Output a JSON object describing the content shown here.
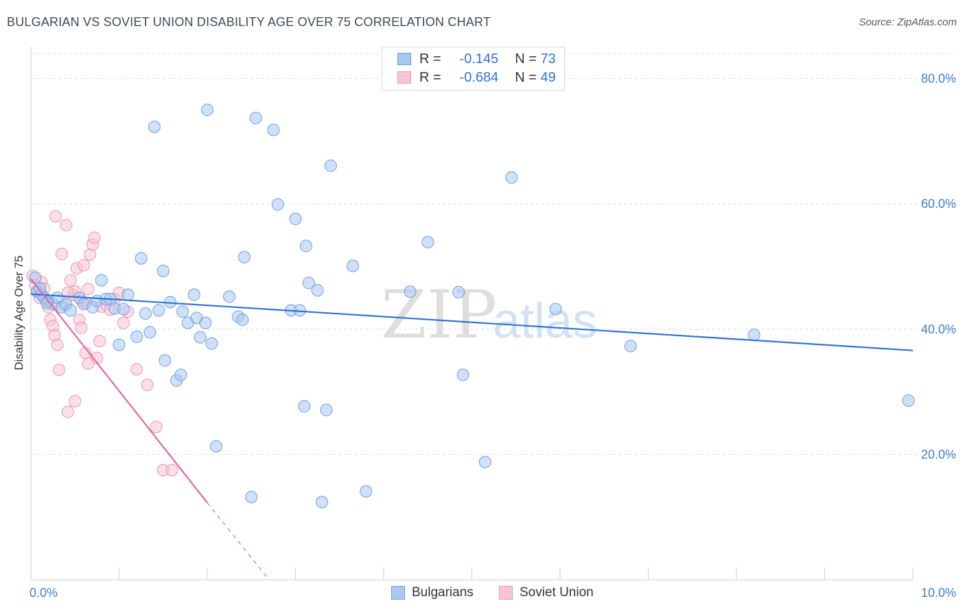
{
  "title": "BULGARIAN VS SOVIET UNION DISABILITY AGE OVER 75 CORRELATION CHART",
  "source": "Source: ZipAtlas.com",
  "watermark": {
    "zip": "ZIP",
    "atlas": "atlas"
  },
  "legend": {
    "rows": [
      {
        "r_label": "R =",
        "r_value": "-0.145",
        "n_label": "N =",
        "n_value": "73",
        "color": "#a9c8f0",
        "border": "#6a9fe0"
      },
      {
        "r_label": "R =",
        "r_value": "-0.684",
        "n_label": "N =",
        "n_value": "49",
        "color": "#f7c5d6",
        "border": "#ec93b2"
      }
    ]
  },
  "bottom_legend": [
    {
      "label": "Bulgarians",
      "color": "#a9c8f0",
      "border": "#6a9fe0"
    },
    {
      "label": "Soviet Union",
      "color": "#f7c5d6",
      "border": "#ec93b2"
    }
  ],
  "chart_data": {
    "type": "scatter",
    "title": "BULGARIAN VS SOVIET UNION DISABILITY AGE OVER 75 CORRELATION CHART",
    "xlabel": "",
    "ylabel": "Disability Age Over 75",
    "xlim": [
      0,
      10
    ],
    "ylim": [
      0,
      84
    ],
    "x_tick_labels": [
      {
        "value": 0,
        "label": "0.0%"
      },
      {
        "value": 10,
        "label": "10.0%"
      }
    ],
    "y_tick_labels": [
      {
        "value": 20,
        "label": "20.0%"
      },
      {
        "value": 40,
        "label": "40.0%"
      },
      {
        "value": 60,
        "label": "60.0%"
      },
      {
        "value": 80,
        "label": "80.0%"
      }
    ],
    "grid": "horizontal dashed",
    "series": [
      {
        "name": "Bulgarians",
        "color": "#a9c8f0",
        "edge": "#6a9fe0",
        "line_color": "#2f72d6",
        "trend": {
          "x": [
            0.0,
            10.0
          ],
          "y": [
            45.6,
            36.6
          ]
        },
        "points": [
          [
            0.05,
            48.2
          ],
          [
            0.07,
            46.0
          ],
          [
            0.12,
            45.5
          ],
          [
            0.15,
            45.0
          ],
          [
            0.2,
            44.5
          ],
          [
            0.25,
            44.0
          ],
          [
            0.3,
            45.0
          ],
          [
            0.35,
            43.5
          ],
          [
            0.4,
            44.0
          ],
          [
            0.45,
            43.0
          ],
          [
            0.55,
            45.0
          ],
          [
            0.6,
            44.0
          ],
          [
            0.7,
            43.5
          ],
          [
            0.75,
            44.5
          ],
          [
            0.8,
            47.8
          ],
          [
            0.85,
            44.8
          ],
          [
            0.9,
            44.8
          ],
          [
            0.95,
            43.3
          ],
          [
            1.0,
            37.5
          ],
          [
            1.05,
            43.2
          ],
          [
            1.1,
            45.5
          ],
          [
            1.2,
            38.8
          ],
          [
            1.25,
            51.3
          ],
          [
            1.3,
            42.5
          ],
          [
            1.35,
            39.5
          ],
          [
            1.4,
            72.3
          ],
          [
            1.45,
            43.0
          ],
          [
            1.5,
            49.3
          ],
          [
            1.52,
            35.0
          ],
          [
            1.58,
            44.3
          ],
          [
            1.65,
            31.8
          ],
          [
            1.7,
            32.7
          ],
          [
            1.72,
            42.8
          ],
          [
            1.78,
            41.0
          ],
          [
            1.85,
            45.5
          ],
          [
            1.88,
            41.8
          ],
          [
            1.92,
            38.7
          ],
          [
            1.98,
            41.0
          ],
          [
            2.0,
            75.0
          ],
          [
            2.05,
            37.7
          ],
          [
            2.1,
            21.3
          ],
          [
            2.25,
            45.2
          ],
          [
            2.35,
            42.0
          ],
          [
            2.4,
            41.5
          ],
          [
            2.42,
            51.5
          ],
          [
            2.5,
            13.2
          ],
          [
            2.55,
            73.7
          ],
          [
            2.75,
            71.8
          ],
          [
            2.8,
            59.9
          ],
          [
            2.95,
            43.0
          ],
          [
            3.0,
            57.6
          ],
          [
            3.05,
            43.0
          ],
          [
            3.1,
            27.7
          ],
          [
            3.12,
            53.3
          ],
          [
            3.15,
            47.4
          ],
          [
            3.25,
            46.2
          ],
          [
            3.3,
            12.4
          ],
          [
            3.35,
            27.1
          ],
          [
            3.4,
            66.1
          ],
          [
            3.65,
            50.1
          ],
          [
            3.8,
            14.1
          ],
          [
            4.3,
            46.0
          ],
          [
            4.5,
            53.9
          ],
          [
            4.85,
            45.9
          ],
          [
            4.9,
            32.7
          ],
          [
            5.15,
            18.8
          ],
          [
            5.45,
            64.2
          ],
          [
            5.95,
            43.2
          ],
          [
            6.8,
            37.3
          ],
          [
            8.2,
            39.1
          ],
          [
            9.95,
            28.6
          ],
          [
            0.1,
            46.5
          ],
          [
            0.18,
            44.2
          ]
        ]
      },
      {
        "name": "Soviet Union",
        "color": "#f7c5d6",
        "edge": "#ec93b2",
        "line_color": "#e0689a",
        "trend": {
          "x": [
            0.0,
            2.0
          ],
          "y": [
            48.0,
            12.3
          ]
        },
        "trend_dashed": {
          "x": [
            2.0,
            2.7
          ],
          "y": [
            12.3,
            0.0
          ]
        },
        "points": [
          [
            0.02,
            48.5
          ],
          [
            0.05,
            47.0
          ],
          [
            0.08,
            46.0
          ],
          [
            0.1,
            45.0
          ],
          [
            0.12,
            47.5
          ],
          [
            0.15,
            46.5
          ],
          [
            0.18,
            44.5
          ],
          [
            0.2,
            43.5
          ],
          [
            0.22,
            41.5
          ],
          [
            0.25,
            40.5
          ],
          [
            0.27,
            39.0
          ],
          [
            0.3,
            37.5
          ],
          [
            0.32,
            33.5
          ],
          [
            0.35,
            52.0
          ],
          [
            0.38,
            43.8
          ],
          [
            0.4,
            56.6
          ],
          [
            0.42,
            26.8
          ],
          [
            0.45,
            47.8
          ],
          [
            0.48,
            45.5
          ],
          [
            0.5,
            46.0
          ],
          [
            0.52,
            49.7
          ],
          [
            0.55,
            41.5
          ],
          [
            0.57,
            40.2
          ],
          [
            0.6,
            50.2
          ],
          [
            0.62,
            36.2
          ],
          [
            0.65,
            34.5
          ],
          [
            0.67,
            51.9
          ],
          [
            0.7,
            53.5
          ],
          [
            0.72,
            54.6
          ],
          [
            0.75,
            35.4
          ],
          [
            0.78,
            38.1
          ],
          [
            0.8,
            43.6
          ],
          [
            0.85,
            44.0
          ],
          [
            0.9,
            43.1
          ],
          [
            0.95,
            44.8
          ],
          [
            1.0,
            45.8
          ],
          [
            1.05,
            41.0
          ],
          [
            1.1,
            42.8
          ],
          [
            1.2,
            33.6
          ],
          [
            1.32,
            31.1
          ],
          [
            1.42,
            24.4
          ],
          [
            1.5,
            17.5
          ],
          [
            1.6,
            17.5
          ],
          [
            0.28,
            58.0
          ],
          [
            0.5,
            28.5
          ],
          [
            0.65,
            46.4
          ],
          [
            0.58,
            44.5
          ],
          [
            0.42,
            45.8
          ],
          [
            0.62,
            44.2
          ]
        ]
      }
    ]
  }
}
